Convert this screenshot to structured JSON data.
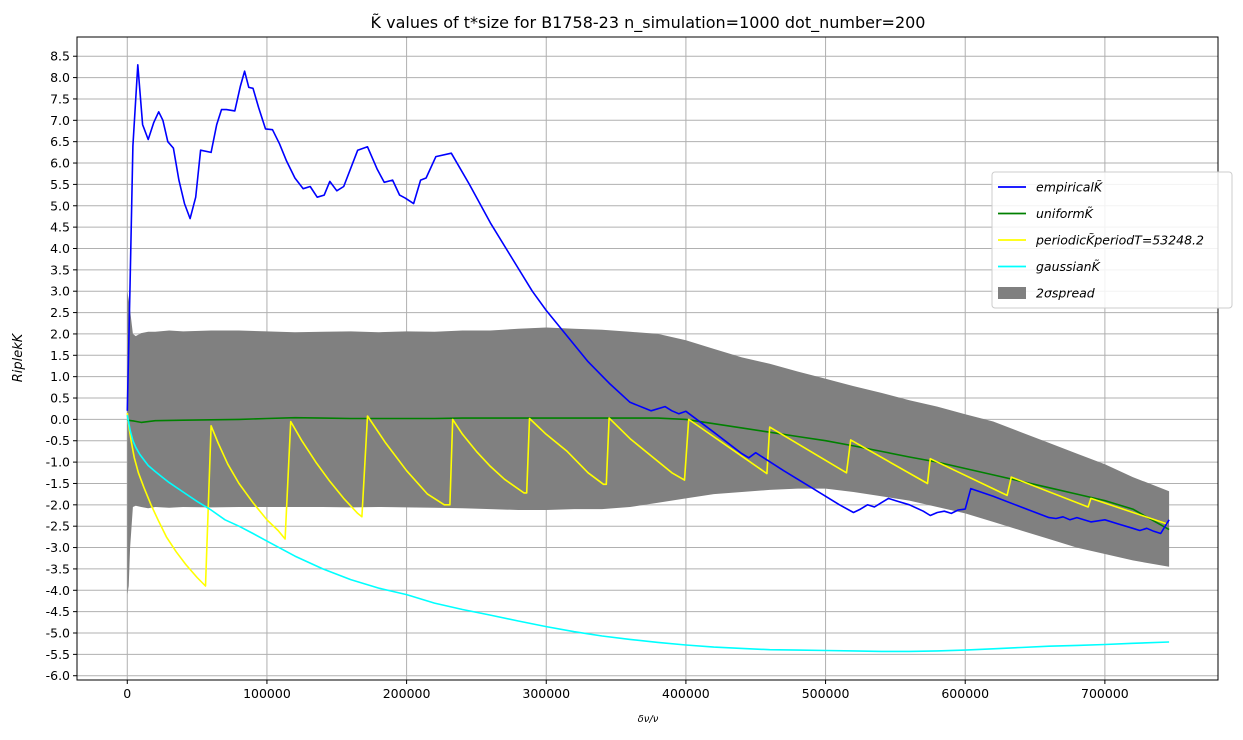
{
  "chart_data": {
    "type": "line",
    "title": "K̃ values of t*size for B1758-23 n_simulation=1000 dot_number=200",
    "xlabel": "δν/ν",
    "ylabel": "RiplekK",
    "xlim": [
      -36000,
      781000
    ],
    "ylim": [
      -6.1,
      8.95
    ],
    "xticks": [
      0,
      100000,
      200000,
      300000,
      400000,
      500000,
      600000,
      700000
    ],
    "yticks": [
      -6.0,
      -5.5,
      -5.0,
      -4.5,
      -4.0,
      -3.5,
      -3.0,
      -2.5,
      -2.0,
      -1.5,
      -1.0,
      -0.5,
      0.0,
      0.5,
      1.0,
      1.5,
      2.0,
      2.5,
      3.0,
      3.5,
      4.0,
      4.5,
      5.0,
      5.5,
      6.0,
      6.5,
      7.0,
      7.5,
      8.0,
      8.5
    ],
    "grid": true,
    "legend_position": "center-right",
    "series": [
      {
        "name": "empiricalK̃",
        "color": "#0000ff",
        "x": [
          0,
          2000,
          4000,
          7500,
          11000,
          15000,
          19000,
          22500,
          25500,
          29000,
          33000,
          37000,
          41000,
          45000,
          49000,
          52500,
          60000,
          64000,
          67500,
          71000,
          77000,
          81000,
          84000,
          87000,
          90000,
          94000,
          99000,
          104000,
          109000,
          114000,
          120000,
          126000,
          131000,
          136000,
          141000,
          145000,
          150000,
          155000,
          165000,
          172000,
          179000,
          184000,
          190000,
          195000,
          199000,
          205000,
          210000,
          214000,
          221000,
          232000,
          245000,
          260000,
          275000,
          290000,
          300000,
          315000,
          330000,
          345000,
          360000,
          375000,
          385000,
          390000,
          395000,
          400000,
          420000,
          440000,
          445000,
          450000,
          470000,
          490000,
          510000,
          520000,
          525000,
          530000,
          535000,
          540000,
          545000,
          550000,
          560000,
          570000,
          575000,
          580000,
          585000,
          590000,
          595000,
          600000,
          604000,
          620000,
          640000,
          660000,
          665000,
          670000,
          675000,
          680000,
          690000,
          700000,
          710000,
          720000,
          725000,
          730000,
          735000,
          740000,
          746000
        ],
        "values": [
          0.2,
          3.2,
          6.4,
          8.3,
          6.9,
          6.55,
          6.95,
          7.2,
          7.0,
          6.5,
          6.35,
          5.6,
          5.05,
          4.7,
          5.2,
          6.3,
          6.25,
          6.9,
          7.25,
          7.25,
          7.22,
          7.8,
          8.15,
          7.77,
          7.75,
          7.3,
          6.8,
          6.78,
          6.45,
          6.05,
          5.65,
          5.4,
          5.45,
          5.2,
          5.25,
          5.57,
          5.35,
          5.45,
          6.3,
          6.38,
          5.85,
          5.55,
          5.6,
          5.25,
          5.18,
          5.05,
          5.6,
          5.65,
          6.15,
          6.23,
          5.5,
          4.6,
          3.8,
          3.0,
          2.55,
          1.95,
          1.35,
          0.85,
          0.4,
          0.2,
          0.3,
          0.2,
          0.13,
          0.19,
          -0.3,
          -0.8,
          -0.9,
          -0.78,
          -1.2,
          -1.6,
          -2.0,
          -2.18,
          -2.1,
          -2.0,
          -2.05,
          -1.95,
          -1.85,
          -1.9,
          -2.0,
          -2.15,
          -2.25,
          -2.18,
          -2.15,
          -2.2,
          -2.12,
          -2.1,
          -1.62,
          -1.8,
          -2.05,
          -2.3,
          -2.32,
          -2.28,
          -2.35,
          -2.3,
          -2.4,
          -2.35,
          -2.45,
          -2.55,
          -2.6,
          -2.55,
          -2.62,
          -2.67,
          -2.35
        ]
      },
      {
        "name": "uniformK̃",
        "color": "#008000",
        "x": [
          0,
          5000,
          10000,
          20000,
          40000,
          60000,
          80000,
          100000,
          120000,
          140000,
          160000,
          180000,
          200000,
          220000,
          240000,
          260000,
          280000,
          300000,
          320000,
          340000,
          360000,
          380000,
          400000,
          420000,
          440000,
          460000,
          480000,
          500000,
          520000,
          540000,
          560000,
          580000,
          600000,
          620000,
          640000,
          660000,
          680000,
          700000,
          720000,
          746000
        ],
        "values": [
          -0.02,
          -0.04,
          -0.07,
          -0.03,
          -0.02,
          -0.01,
          0.0,
          0.02,
          0.04,
          0.03,
          0.02,
          0.02,
          0.02,
          0.02,
          0.03,
          0.03,
          0.03,
          0.03,
          0.03,
          0.03,
          0.03,
          0.03,
          0.0,
          -0.1,
          -0.2,
          -0.3,
          -0.4,
          -0.5,
          -0.62,
          -0.75,
          -0.88,
          -1.0,
          -1.15,
          -1.3,
          -1.45,
          -1.6,
          -1.75,
          -1.9,
          -2.1,
          -2.58
        ]
      },
      {
        "name": "periodicK̃periodT=53248.2",
        "color": "#ffff00",
        "x": [
          0,
          1500,
          3000,
          5000,
          8000,
          12000,
          17000,
          22000,
          28000,
          35000,
          42000,
          50000,
          56000,
          60000,
          65000,
          72000,
          80000,
          90000,
          100000,
          108000,
          113000,
          117000,
          125000,
          135000,
          145000,
          155000,
          165000,
          168000,
          172000,
          185000,
          200000,
          215000,
          227000,
          231000,
          233000,
          240000,
          250000,
          260000,
          270000,
          284000,
          286000,
          288000,
          300000,
          315000,
          330000,
          341000,
          343000,
          345000,
          360000,
          375000,
          390000,
          399000,
          402000,
          458000,
          460000,
          515000,
          518000,
          573000,
          575000,
          630000,
          633000,
          688000,
          690000,
          745000
        ],
        "values": [
          0.15,
          -0.25,
          -0.55,
          -0.9,
          -1.25,
          -1.6,
          -2.0,
          -2.35,
          -2.75,
          -3.1,
          -3.4,
          -3.7,
          -3.9,
          -0.15,
          -0.55,
          -1.05,
          -1.5,
          -1.95,
          -2.35,
          -2.6,
          -2.8,
          -0.05,
          -0.5,
          -1.0,
          -1.45,
          -1.85,
          -2.2,
          -2.28,
          0.08,
          -0.55,
          -1.2,
          -1.75,
          -2.0,
          -2.0,
          0.0,
          -0.35,
          -0.75,
          -1.1,
          -1.4,
          -1.72,
          -1.72,
          0.02,
          -0.35,
          -0.75,
          -1.25,
          -1.52,
          -1.52,
          0.03,
          -0.45,
          -0.85,
          -1.25,
          -1.42,
          0.0,
          -1.27,
          -0.18,
          -1.25,
          -0.48,
          -1.5,
          -0.92,
          -1.78,
          -1.35,
          -2.05,
          -1.85,
          -2.45
        ]
      },
      {
        "name": "gaussianK̃",
        "color": "#00ffff",
        "x": [
          0,
          2000,
          4000,
          6000,
          9000,
          12000,
          15000,
          20000,
          25000,
          30000,
          40000,
          50000,
          60000,
          70000,
          80000,
          90000,
          100000,
          120000,
          140000,
          160000,
          180000,
          200000,
          220000,
          240000,
          260000,
          280000,
          300000,
          320000,
          340000,
          360000,
          380000,
          400000,
          420000,
          440000,
          460000,
          480000,
          500000,
          520000,
          540000,
          560000,
          580000,
          600000,
          620000,
          640000,
          660000,
          680000,
          700000,
          720000,
          746000
        ],
        "values": [
          0.1,
          -0.25,
          -0.5,
          -0.65,
          -0.82,
          -0.95,
          -1.08,
          -1.22,
          -1.35,
          -1.48,
          -1.7,
          -1.92,
          -2.12,
          -2.35,
          -2.5,
          -2.67,
          -2.85,
          -3.2,
          -3.5,
          -3.75,
          -3.95,
          -4.1,
          -4.3,
          -4.45,
          -4.58,
          -4.72,
          -4.85,
          -4.97,
          -5.07,
          -5.15,
          -5.22,
          -5.28,
          -5.33,
          -5.36,
          -5.39,
          -5.4,
          -5.41,
          -5.42,
          -5.43,
          -5.43,
          -5.42,
          -5.4,
          -5.37,
          -5.34,
          -5.31,
          -5.29,
          -5.27,
          -5.24,
          -5.21
        ]
      }
    ],
    "band": {
      "name": "2σspread",
      "color": "#808080",
      "x": [
        0,
        1000,
        2000,
        4000,
        6000,
        10000,
        15000,
        20000,
        30000,
        40000,
        60000,
        80000,
        100000,
        120000,
        140000,
        160000,
        180000,
        200000,
        220000,
        240000,
        260000,
        280000,
        300000,
        320000,
        340000,
        360000,
        380000,
        400000,
        420000,
        440000,
        460000,
        480000,
        500000,
        520000,
        540000,
        560000,
        580000,
        600000,
        620000,
        640000,
        660000,
        680000,
        700000,
        720000,
        746000
      ],
      "upper": [
        3.0,
        2.8,
        2.55,
        2.0,
        1.95,
        2.02,
        2.05,
        2.05,
        2.08,
        2.06,
        2.08,
        2.08,
        2.06,
        2.04,
        2.05,
        2.06,
        2.04,
        2.06,
        2.05,
        2.08,
        2.08,
        2.12,
        2.15,
        2.12,
        2.1,
        2.05,
        2.0,
        1.85,
        1.65,
        1.45,
        1.3,
        1.12,
        0.95,
        0.78,
        0.62,
        0.45,
        0.3,
        0.12,
        -0.05,
        -0.3,
        -0.55,
        -0.8,
        -1.05,
        -1.35,
        -1.68
      ],
      "lower": [
        -4.1,
        -3.9,
        -3.0,
        -2.05,
        -2.02,
        -2.05,
        -2.08,
        -2.05,
        -2.07,
        -2.05,
        -2.06,
        -2.05,
        -2.05,
        -2.05,
        -2.05,
        -2.06,
        -2.05,
        -2.06,
        -2.07,
        -2.08,
        -2.1,
        -2.12,
        -2.12,
        -2.1,
        -2.1,
        -2.05,
        -1.95,
        -1.85,
        -1.75,
        -1.7,
        -1.65,
        -1.62,
        -1.62,
        -1.7,
        -1.8,
        -1.9,
        -2.05,
        -2.2,
        -2.4,
        -2.6,
        -2.8,
        -3.0,
        -3.15,
        -3.3,
        -3.45
      ]
    }
  }
}
